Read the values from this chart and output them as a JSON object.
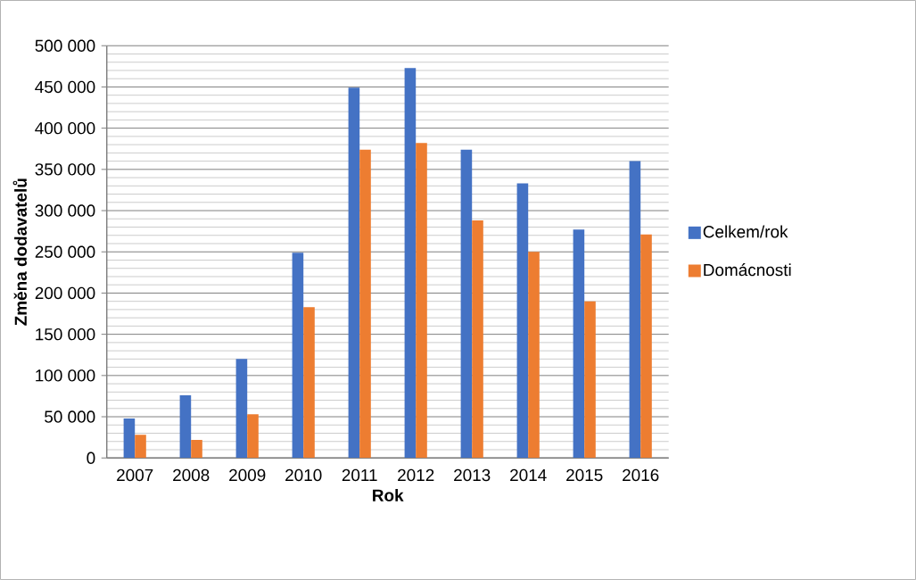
{
  "chart_data": {
    "type": "bar",
    "xlabel": "Rok",
    "ylabel": "Změna dodavatelů",
    "categories": [
      "2007",
      "2008",
      "2009",
      "2010",
      "2011",
      "2012",
      "2013",
      "2014",
      "2015",
      "2016"
    ],
    "series": [
      {
        "name": "Celkem/rok",
        "color": "#4472c4",
        "values": [
          48000,
          76000,
          120000,
          249000,
          449000,
          473000,
          374000,
          333000,
          277000,
          360000
        ]
      },
      {
        "name": "Domácnosti",
        "color": "#ed7d31",
        "values": [
          28000,
          22000,
          53000,
          183000,
          374000,
          382000,
          288000,
          250000,
          190000,
          271000
        ]
      }
    ],
    "ylim": [
      0,
      500000
    ],
    "yticks": [
      {
        "value": 0,
        "label": "0"
      },
      {
        "value": 50000,
        "label": "50 000"
      },
      {
        "value": 100000,
        "label": "100 000"
      },
      {
        "value": 150000,
        "label": "150 000"
      },
      {
        "value": 200000,
        "label": "200 000"
      },
      {
        "value": 250000,
        "label": "250 000"
      },
      {
        "value": 300000,
        "label": "300 000"
      },
      {
        "value": 350000,
        "label": "350 000"
      },
      {
        "value": 400000,
        "label": "400 000"
      },
      {
        "value": 450000,
        "label": "450 000"
      },
      {
        "value": 500000,
        "label": "500 000"
      }
    ],
    "grid": "y",
    "legend": "right"
  }
}
